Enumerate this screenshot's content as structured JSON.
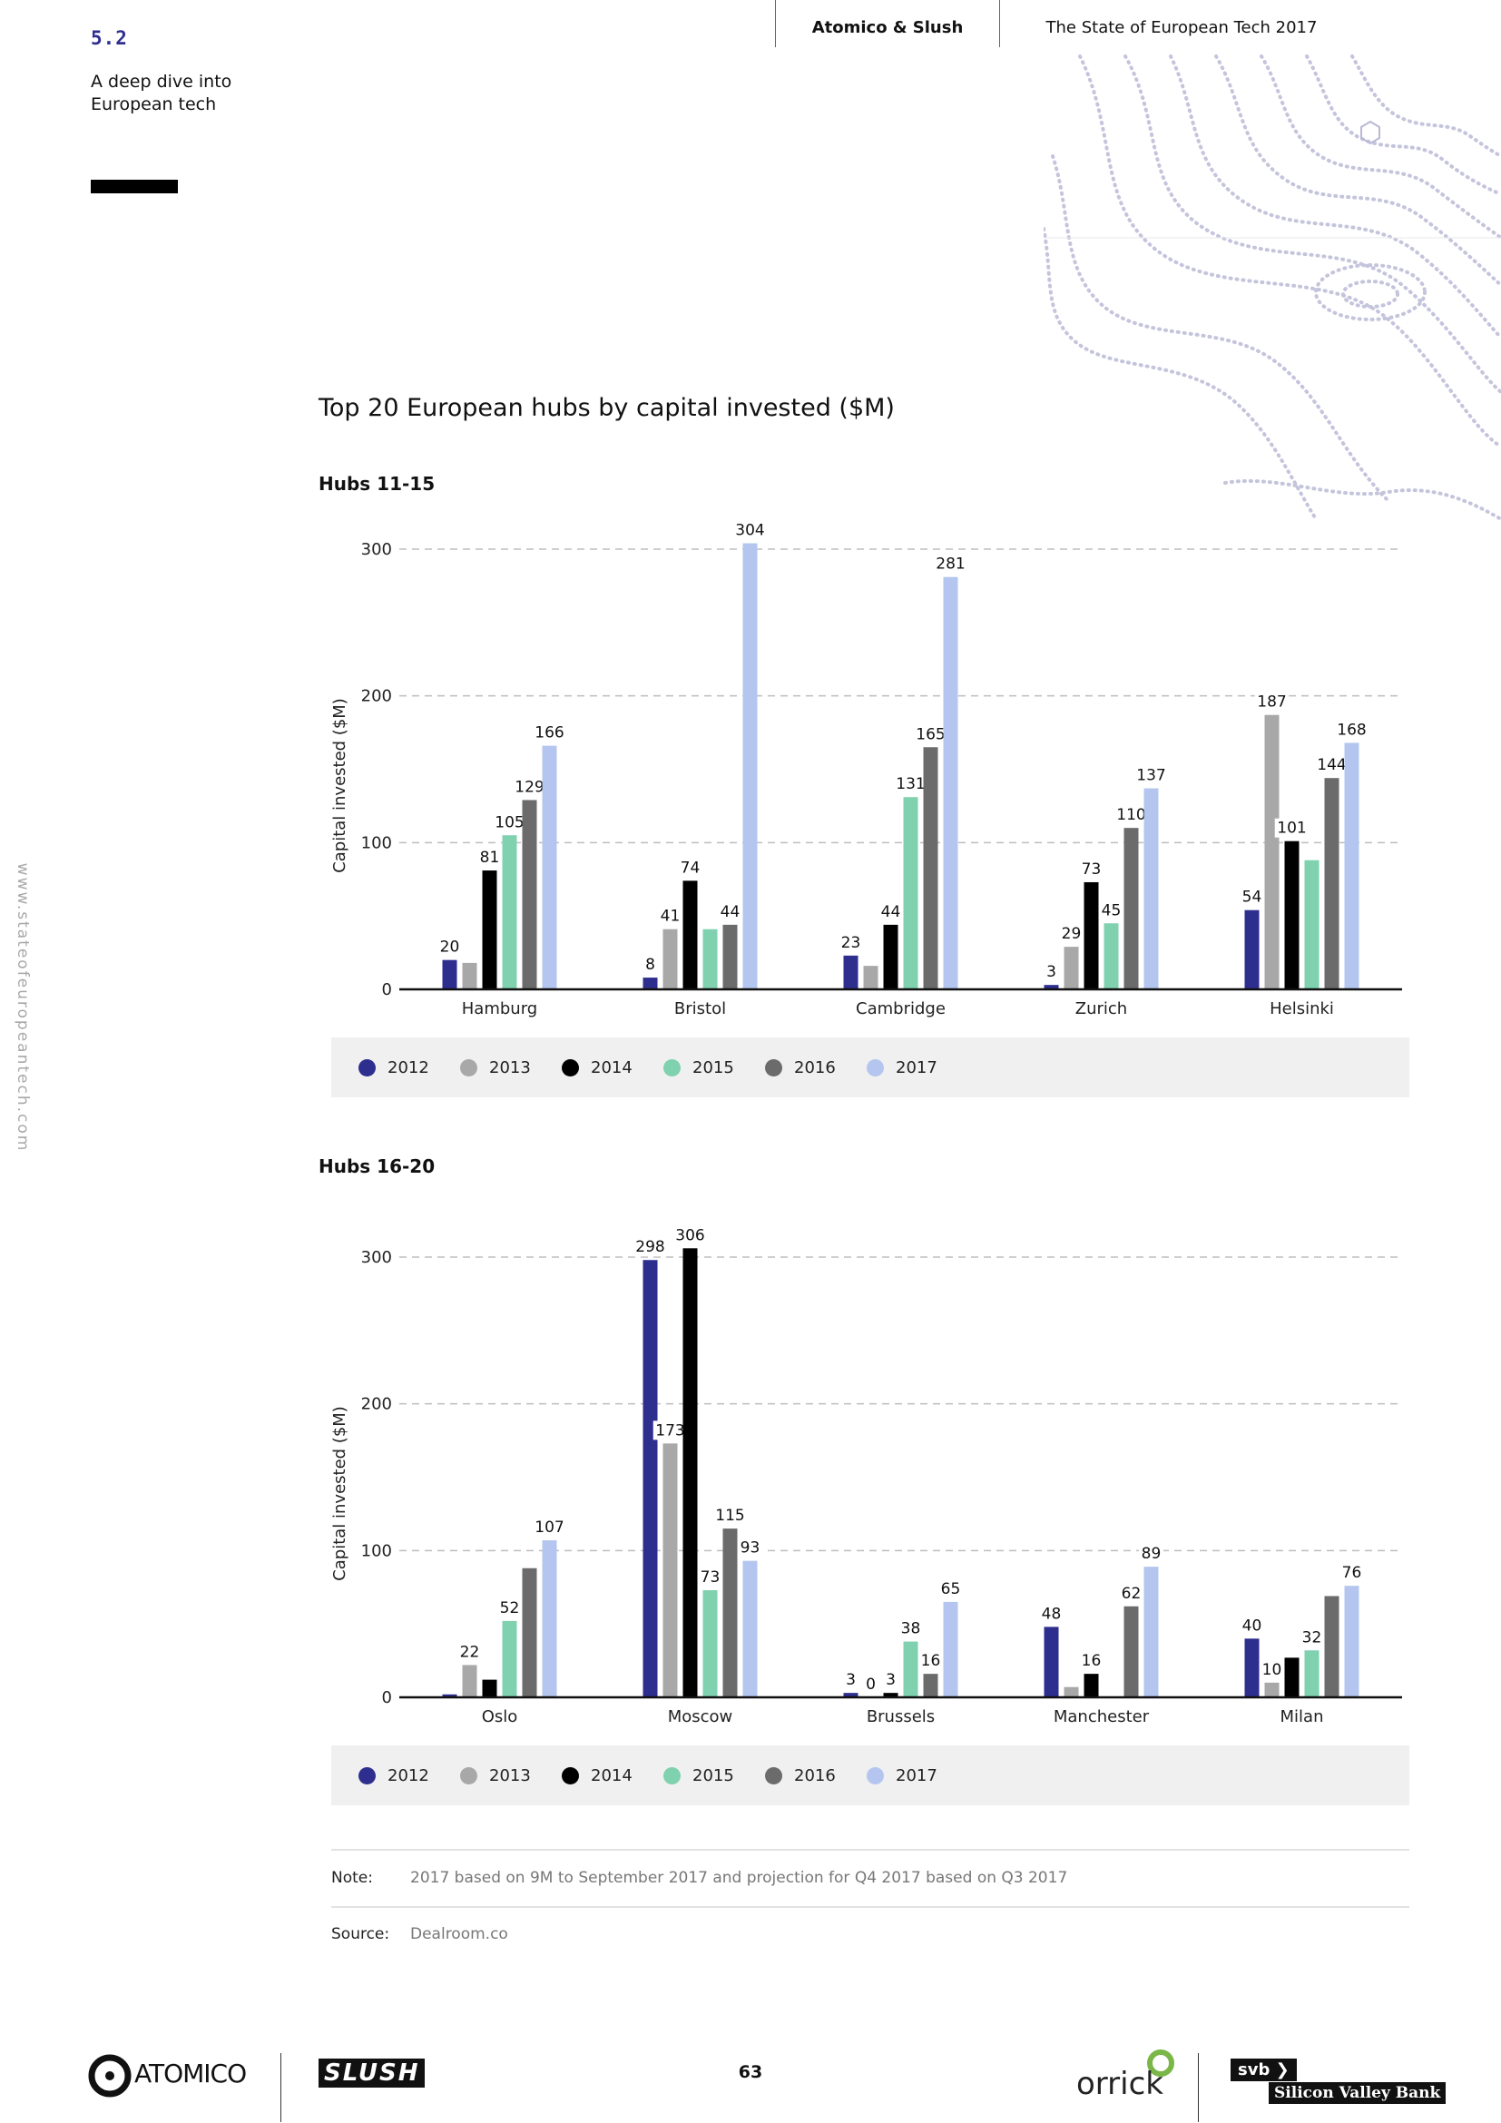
{
  "section": {
    "number": "5.2",
    "title": "A deep dive into European tech"
  },
  "header": {
    "left": "Atomico & Slush",
    "right": "The State of European Tech 2017"
  },
  "side_url": "www.stateofeuropeantech.com",
  "colors": {
    "2012": "#2e2e8f",
    "2013": "#a8a8a8",
    "2014": "#000000",
    "2015": "#7fd1b0",
    "2016": "#6b6b6b",
    "2017": "#b4c6ef"
  },
  "chart_data": [
    {
      "type": "bar",
      "title": "Top 20 European hubs by capital invested ($M)",
      "subtitle": "Hubs 11-15",
      "ylabel": "Capital invested ($M)",
      "xlabel": "",
      "ylim": [
        0,
        300
      ],
      "yticks": [
        "0",
        "100",
        "200",
        "300"
      ],
      "grid": true,
      "categories": [
        "Hamburg",
        "Bristol",
        "Cambridge",
        "Zurich",
        "Helsinki"
      ],
      "series": [
        {
          "name": "2012",
          "values": [
            20,
            8,
            23,
            3,
            54
          ],
          "labels": [
            "20",
            "8",
            "23",
            "3",
            "54"
          ]
        },
        {
          "name": "2013",
          "values": [
            18,
            41,
            16,
            29,
            187
          ],
          "labels": [
            "",
            "41",
            "",
            "29",
            "187"
          ]
        },
        {
          "name": "2014",
          "values": [
            81,
            74,
            44,
            73,
            101
          ],
          "labels": [
            "81",
            "74",
            "44",
            "73",
            "101"
          ]
        },
        {
          "name": "2015",
          "values": [
            105,
            41,
            131,
            45,
            88
          ],
          "labels": [
            "105",
            "",
            "131",
            "45",
            ""
          ]
        },
        {
          "name": "2016",
          "values": [
            129,
            44,
            165,
            110,
            144
          ],
          "labels": [
            "129",
            "44",
            "165",
            "110",
            "144"
          ]
        },
        {
          "name": "2017",
          "values": [
            166,
            304,
            281,
            137,
            168
          ],
          "labels": [
            "166",
            "304",
            "281",
            "137",
            "168"
          ]
        }
      ],
      "legend": [
        "2012",
        "2013",
        "2014",
        "2015",
        "2016",
        "2017"
      ]
    },
    {
      "type": "bar",
      "subtitle": "Hubs 16-20",
      "ylabel": "Capital invested ($M)",
      "xlabel": "",
      "ylim": [
        0,
        300
      ],
      "yticks": [
        "0",
        "100",
        "200",
        "300"
      ],
      "grid": true,
      "categories": [
        "Oslo",
        "Moscow",
        "Brussels",
        "Manchester",
        "Milan"
      ],
      "series": [
        {
          "name": "2012",
          "values": [
            2,
            298,
            3,
            48,
            40
          ],
          "labels": [
            "",
            "298",
            "3",
            "48",
            "40"
          ]
        },
        {
          "name": "2013",
          "values": [
            22,
            173,
            0,
            7,
            10
          ],
          "labels": [
            "22",
            "173",
            "0",
            "",
            "10"
          ]
        },
        {
          "name": "2014",
          "values": [
            12,
            306,
            3,
            16,
            27
          ],
          "labels": [
            "",
            "306",
            "3",
            "16",
            ""
          ]
        },
        {
          "name": "2015",
          "values": [
            52,
            73,
            38,
            0,
            32
          ],
          "labels": [
            "52",
            "73",
            "38",
            "",
            "32"
          ]
        },
        {
          "name": "2016",
          "values": [
            88,
            115,
            16,
            62,
            69
          ],
          "labels": [
            "",
            "115",
            "16",
            "62",
            ""
          ]
        },
        {
          "name": "2017",
          "values": [
            107,
            93,
            65,
            89,
            76
          ],
          "labels": [
            "107",
            "93",
            "65",
            "89",
            "76"
          ]
        }
      ],
      "legend": [
        "2012",
        "2013",
        "2014",
        "2015",
        "2016",
        "2017"
      ]
    }
  ],
  "note": {
    "label": "Note:",
    "text": "2017 based on 9M to September 2017 and projection for Q4 2017 based on Q3 2017"
  },
  "source": {
    "label": "Source:",
    "text": "Dealroom.co"
  },
  "footer": {
    "page": "63",
    "atomico": "ATOMICO",
    "slush": "SLUSH",
    "orrick": "orrick",
    "svb": "svb",
    "svb_name": "Silicon Valley Bank"
  }
}
